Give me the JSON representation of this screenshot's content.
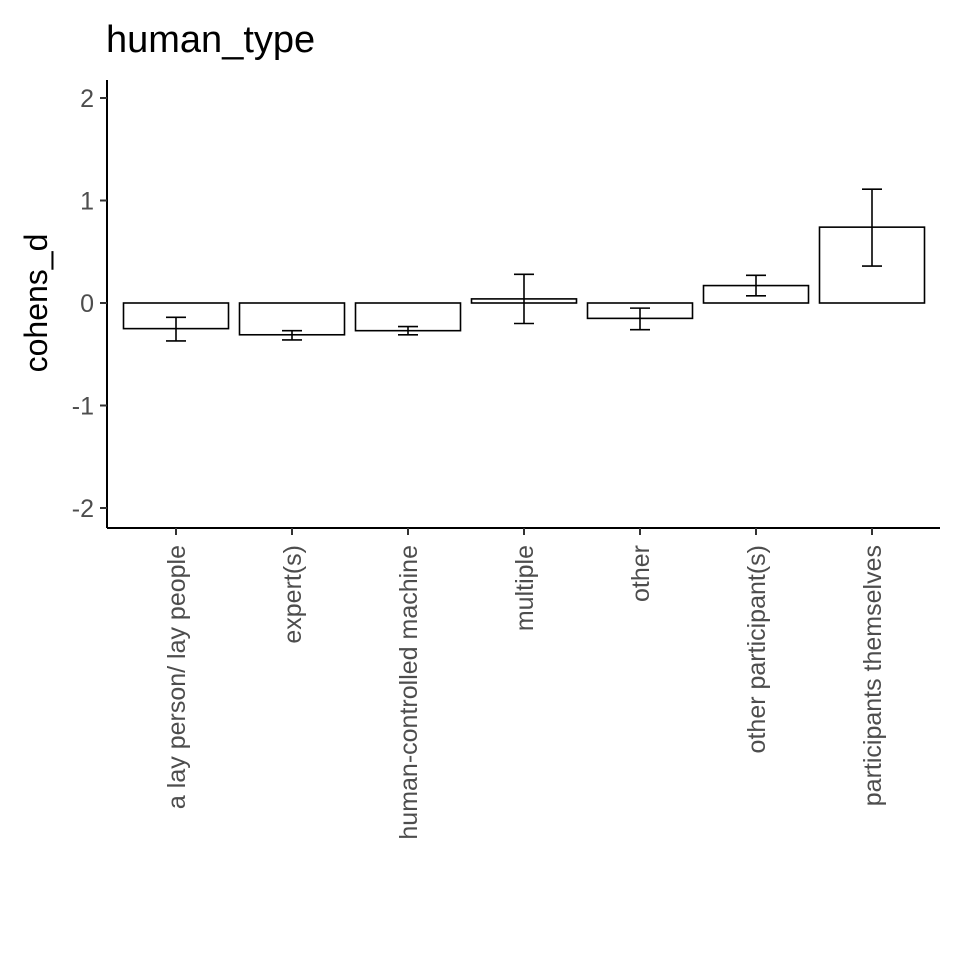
{
  "chart_data": {
    "type": "bar",
    "title": "human_type",
    "xlabel": "",
    "ylabel": "cohens_d",
    "ylim": [
      -2.2,
      2.2
    ],
    "yticks": [
      -2,
      -1,
      0,
      1,
      2
    ],
    "ytick_labels": [
      "-2",
      "-1",
      "0",
      "1",
      "2"
    ],
    "grid": false,
    "legend": "none",
    "bar_fill": "#ffffff",
    "bar_stroke": "#000000",
    "categories": [
      "a lay person/ lay people",
      "expert(s)",
      "human-controlled machine",
      "multiple",
      "other",
      "other participant(s)",
      "participants themselves"
    ],
    "values": [
      -0.25,
      -0.31,
      -0.27,
      0.04,
      -0.15,
      0.17,
      0.74
    ],
    "error_low": [
      -0.37,
      -0.36,
      -0.31,
      -0.2,
      -0.26,
      0.07,
      0.36
    ],
    "error_high": [
      -0.14,
      -0.27,
      -0.23,
      0.28,
      -0.05,
      0.27,
      1.11
    ]
  }
}
